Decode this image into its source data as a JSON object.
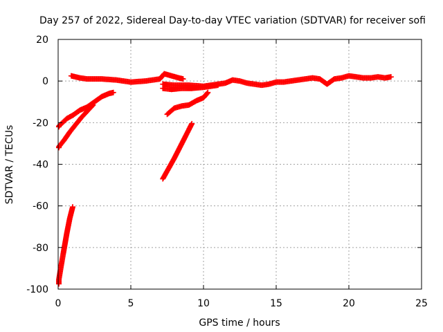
{
  "chart_data": {
    "type": "scatter",
    "title": "Day 257 of 2022, Sidereal Day-to-day VTEC variation (SDTVAR) for receiver sofi",
    "xlabel": "GPS time / hours",
    "ylabel": "SDTVAR / TECUs",
    "xlim": [
      0,
      25
    ],
    "ylim": [
      -100,
      20
    ],
    "xticks": [
      "0",
      "5",
      "10",
      "15",
      "20",
      "25"
    ],
    "yticks": [
      "-100",
      "-80",
      "-60",
      "-40",
      "-20",
      "0",
      "20"
    ],
    "xtick_values": [
      0,
      5,
      10,
      15,
      20,
      25
    ],
    "ytick_values": [
      -100,
      -80,
      -60,
      -40,
      -20,
      0,
      20
    ],
    "grid": true,
    "marker": "plus",
    "series_color": "#ff0000",
    "series": [
      {
        "x": [
          0.9,
          1.5,
          2.0,
          3.0,
          4.0,
          5.0,
          6.0,
          7.0,
          7.3,
          7.8,
          8.3,
          8.6
        ],
        "values": [
          2.5,
          1.5,
          1.0,
          1.0,
          0.5,
          -0.5,
          0.0,
          1.0,
          3.5,
          2.5,
          1.5,
          1.0
        ]
      },
      {
        "x": [
          7.2,
          7.8,
          8.5,
          9.2,
          10.0,
          10.5,
          11.0
        ],
        "values": [
          -3.5,
          -4.0,
          -3.5,
          -3.5,
          -3.0,
          -2.5,
          -2.0
        ]
      },
      {
        "x": [
          7.2,
          8.0,
          9.0,
          10.0,
          11.0,
          11.5,
          12.0,
          12.5,
          13.0,
          13.5,
          14.0,
          14.5,
          15.0,
          15.5,
          16.0,
          16.5,
          17.0,
          17.5,
          18.0,
          18.5,
          19.0,
          19.5,
          20.0,
          20.5,
          21.0,
          21.5,
          22.0,
          22.5,
          22.9
        ],
        "values": [
          -1.5,
          -2.0,
          -2.0,
          -2.5,
          -1.5,
          -1.0,
          0.5,
          0.0,
          -1.0,
          -1.5,
          -2.0,
          -1.5,
          -0.5,
          -0.5,
          0.0,
          0.5,
          1.0,
          1.5,
          1.0,
          -1.5,
          1.0,
          1.5,
          2.5,
          2.0,
          1.5,
          1.5,
          2.0,
          1.5,
          2.0
        ]
      },
      {
        "x": [
          7.5,
          8.0,
          8.5,
          9.0,
          9.5,
          10.0,
          10.3
        ],
        "values": [
          -16.0,
          -13.0,
          -12.0,
          -11.5,
          -9.5,
          -8.0,
          -5.5
        ]
      },
      {
        "x": [
          7.2,
          7.6,
          8.0,
          8.4,
          8.8,
          9.2
        ],
        "values": [
          -47.0,
          -42.0,
          -37.0,
          -31.5,
          -26.0,
          -20.5
        ]
      },
      {
        "x": [
          0.0,
          0.3,
          0.6,
          1.0,
          1.5,
          2.0,
          2.5,
          3.0,
          3.5,
          3.8
        ],
        "values": [
          -22.0,
          -20.0,
          -18.0,
          -16.5,
          -14.0,
          -12.5,
          -10.0,
          -7.5,
          -6.0,
          -5.5
        ]
      },
      {
        "x": [
          0.0,
          0.4,
          0.8,
          1.2,
          1.6,
          2.0,
          2.4
        ],
        "values": [
          -32.0,
          -28.5,
          -24.5,
          -21.0,
          -17.5,
          -14.5,
          -11.5
        ]
      },
      {
        "x": [
          0.0,
          0.2,
          0.4,
          0.6,
          0.8,
          1.0
        ],
        "values": [
          -97.5,
          -89.0,
          -81.0,
          -73.0,
          -66.0,
          -60.5
        ]
      }
    ]
  }
}
